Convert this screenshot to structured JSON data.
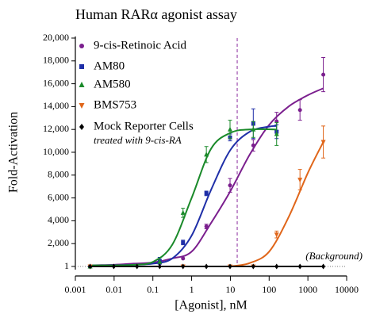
{
  "chart_data": {
    "type": "scatter",
    "title": "Human RARα agonist assay",
    "x_label": "[Agonist], nM",
    "y_label": "Fold-Activation",
    "x_log": true,
    "xlim": [
      0.001,
      10000
    ],
    "xticks": [
      0.001,
      0.01,
      0.1,
      1,
      10,
      100,
      1000,
      10000
    ],
    "ylim": [
      1,
      20000
    ],
    "yticks": [
      1,
      {
        "value": 2000,
        "label": "2,000"
      },
      {
        "value": 4000,
        "label": "4,000"
      },
      {
        "value": 6000,
        "label": "6,000"
      },
      {
        "value": 8000,
        "label": "8,000"
      },
      {
        "value": 10000,
        "label": "10,000"
      },
      {
        "value": 12000,
        "label": "12,000"
      },
      {
        "value": 14000,
        "label": "14,000"
      },
      {
        "value": 16000,
        "label": "16,000"
      },
      {
        "value": 18000,
        "label": "18,000"
      },
      {
        "value": 20000,
        "label": "20,000"
      }
    ],
    "baseline": {
      "value": 1,
      "label": "(Background)"
    },
    "reference_line": {
      "x": 15,
      "color": "#8a2a9e"
    },
    "legend_position": "upper left",
    "series": [
      {
        "name": "9-cis-Retinoic Acid",
        "color": "#7b1f8e",
        "marker": "circle",
        "x": [
          0.0024,
          0.15,
          0.6,
          2.4,
          9.8,
          39,
          156,
          625,
          2500
        ],
        "values": [
          1,
          300,
          700,
          3500,
          7100,
          10600,
          12700,
          13700,
          16800
        ],
        "errors": [
          null,
          null,
          null,
          200,
          600,
          500,
          800,
          900,
          1500
        ],
        "fit_x": [
          0.0024,
          0.01,
          0.0316,
          0.1,
          0.316,
          1,
          3.16,
          10,
          31.6,
          100,
          316,
          1000,
          2500
        ],
        "fit_values": [
          100,
          150,
          250,
          350,
          700,
          1300,
          3800,
          6600,
          9800,
          12400,
          14000,
          15000,
          15600
        ]
      },
      {
        "name": "AM80",
        "color": "#1f2fa8",
        "marker": "square",
        "x": [
          0.0024,
          0.15,
          0.6,
          2.4,
          9.8,
          39,
          156
        ],
        "values": [
          1,
          500,
          2100,
          6400,
          11300,
          12500,
          11800
        ],
        "errors": [
          null,
          300,
          200,
          200,
          300,
          1300,
          600
        ],
        "fit_x": [
          0.0024,
          0.01,
          0.0316,
          0.1,
          0.316,
          1,
          3.16,
          10,
          31.6,
          100,
          156
        ],
        "fit_values": [
          100,
          110,
          150,
          250,
          700,
          2700,
          6700,
          10200,
          11800,
          12250,
          12300
        ]
      },
      {
        "name": "AM580",
        "color": "#1a8a2a",
        "marker": "triangle",
        "x": [
          0.0024,
          0.15,
          0.6,
          2.4,
          9.8,
          39,
          156
        ],
        "values": [
          1,
          400,
          4700,
          9800,
          12000,
          12000,
          11600
        ],
        "errors": [
          null,
          null,
          400,
          700,
          800,
          700,
          1000
        ],
        "fit_x": [
          0.0024,
          0.01,
          0.0316,
          0.1,
          0.316,
          1,
          3.16,
          10,
          31.6,
          156
        ],
        "fit_values": [
          100,
          100,
          150,
          400,
          1900,
          6000,
          10300,
          11700,
          12000,
          12000
        ]
      },
      {
        "name": "BMS753",
        "color": "#e0661a",
        "marker": "triangle-down",
        "x": [
          0.0024,
          0.6,
          9.8,
          39,
          156,
          625,
          2500
        ],
        "values": [
          1,
          1,
          1,
          1,
          2800,
          7600,
          10900
        ],
        "errors": [
          null,
          null,
          null,
          null,
          300,
          900,
          1400
        ],
        "fit_x": [
          10,
          31.6,
          100,
          316,
          1000,
          2500
        ],
        "fit_values": [
          1,
          300,
          1300,
          4300,
          8200,
          10900
        ]
      },
      {
        "name": "Mock Reporter Cells",
        "note": "treated with 9-cis-RA",
        "color": "#000000",
        "marker": "diamond",
        "x": [
          0.0024,
          0.0098,
          0.039,
          0.15,
          0.6,
          2.4,
          9.8,
          39,
          156,
          625,
          2500
        ],
        "values": [
          1,
          1,
          1,
          1,
          1,
          1,
          1,
          1,
          1,
          1,
          1
        ],
        "fit_x": [
          0.0024,
          2500
        ],
        "fit_values": [
          1,
          1
        ]
      }
    ]
  }
}
